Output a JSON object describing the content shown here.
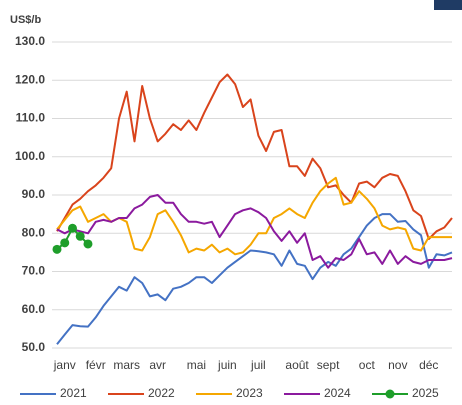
{
  "chart_data": {
    "type": "line",
    "unit_label": "US$/b",
    "categories": [
      null,
      "janv",
      null,
      null,
      null,
      "févr",
      null,
      null,
      null,
      "mars",
      null,
      null,
      null,
      "avr",
      null,
      null,
      null,
      null,
      "mai",
      null,
      null,
      null,
      "juin",
      null,
      null,
      null,
      "juil",
      null,
      null,
      null,
      null,
      "août",
      null,
      null,
      null,
      "sept",
      null,
      null,
      null,
      null,
      "oct",
      null,
      null,
      null,
      "nov",
      null,
      null,
      null,
      "déc",
      null,
      null,
      null
    ],
    "series": [
      {
        "name": "2021",
        "color": "#4472c4",
        "values": [
          51,
          53.5,
          56,
          55.7,
          55.6,
          58,
          61,
          63.5,
          66,
          65,
          68.5,
          67,
          63.5,
          64,
          62.5,
          65.5,
          66,
          67,
          68.5,
          68.5,
          67,
          69,
          71,
          72.5,
          74,
          75.5,
          75.3,
          75,
          74.5,
          71.5,
          75.5,
          72,
          71.5,
          68,
          71,
          72.5,
          71.5,
          74.5,
          76,
          79,
          82,
          84,
          85,
          85,
          83,
          83.2,
          81,
          79.5,
          71,
          74.5,
          74.2,
          75
        ]
      },
      {
        "name": "2022",
        "color": "#d9441c",
        "values": [
          80.5,
          84,
          87.5,
          89,
          91,
          92.5,
          94.5,
          97,
          110,
          117,
          104,
          118.5,
          110,
          104,
          106,
          108.5,
          107,
          109.5,
          107,
          111.5,
          115.5,
          119.5,
          121.5,
          119,
          113,
          115,
          105.5,
          101.5,
          106.5,
          107,
          97.5,
          97.5,
          95,
          99.5,
          97,
          92,
          92.5,
          90,
          88,
          93,
          93.5,
          92,
          94.5,
          95.5,
          95,
          91,
          86,
          84.5,
          78.5,
          80.5,
          81.5,
          84
        ]
      },
      {
        "name": "2023",
        "color": "#f5a700",
        "values": [
          81,
          83.5,
          86,
          87,
          83,
          84,
          85,
          83,
          84,
          83,
          76,
          75.5,
          79,
          85,
          86,
          83,
          79.5,
          75,
          76,
          75.5,
          77,
          75,
          76,
          74.5,
          75,
          77,
          80,
          80,
          84,
          85,
          86.5,
          85,
          84,
          88,
          91,
          93,
          94.5,
          87.5,
          88,
          91,
          89,
          86.5,
          82,
          81,
          81.5,
          81,
          76,
          75.5,
          79,
          79,
          79,
          79
        ]
      },
      {
        "name": "2024",
        "color": "#8b1a9e",
        "values": [
          81,
          80,
          81,
          80.5,
          80,
          83,
          83.5,
          83,
          84,
          84,
          86.5,
          87.5,
          89.5,
          90,
          88,
          88,
          85,
          83,
          83,
          82.5,
          83,
          79,
          82,
          85,
          86,
          86.5,
          85.5,
          84,
          80.5,
          78,
          80.5,
          77.5,
          80,
          73,
          74,
          71,
          73.5,
          73,
          74.5,
          78.5,
          74.5,
          75,
          72,
          75.5,
          72,
          74,
          72.5,
          72,
          73,
          73,
          73,
          73.5
        ]
      },
      {
        "name": "2025",
        "color": "#1e9e2a",
        "markers": true,
        "values": [
          75.8,
          77.5,
          81.3,
          79.2,
          77.2,
          null,
          null,
          null,
          null,
          null,
          null,
          null,
          null,
          null,
          null,
          null,
          null,
          null,
          null,
          null,
          null,
          null,
          null,
          null,
          null,
          null,
          null,
          null,
          null,
          null,
          null,
          null,
          null,
          null,
          null,
          null,
          null,
          null,
          null,
          null,
          null,
          null,
          null,
          null,
          null,
          null,
          null,
          null,
          null,
          null,
          null,
          null
        ]
      }
    ],
    "ylim": [
      50,
      130
    ],
    "yticks": [
      {
        "value": 50,
        "label": "50.0"
      },
      {
        "value": 60,
        "label": "60.0"
      },
      {
        "value": 70,
        "label": "70.0"
      },
      {
        "value": 80,
        "label": "80.0"
      },
      {
        "value": 90,
        "label": "90.0"
      },
      {
        "value": 100,
        "label": "100.0"
      },
      {
        "value": 110,
        "label": "110.0"
      },
      {
        "value": 120,
        "label": "120.0"
      },
      {
        "value": 130,
        "label": "130.0"
      }
    ],
    "grid": true
  }
}
